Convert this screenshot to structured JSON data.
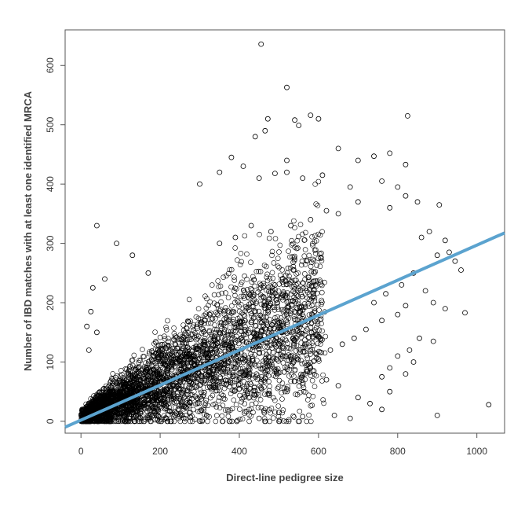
{
  "chart_data": {
    "type": "scatter",
    "title": "",
    "xlabel": "Direct-line pedigree size",
    "ylabel": "Number of IBD matches with at least one identified MRCA",
    "xlim": [
      -40,
      1070
    ],
    "ylim": [
      -20,
      660
    ],
    "x_ticks": [
      0,
      200,
      400,
      600,
      800,
      1000
    ],
    "y_ticks": [
      0,
      100,
      200,
      300,
      400,
      500,
      600
    ],
    "grid": false,
    "legend": "none",
    "point_style": "open circle",
    "point_color": "#000000",
    "fit_line": {
      "intercept": 2,
      "slope": 0.295,
      "color": "#5ba3cf"
    },
    "x_tick_labels": [
      "0",
      "200",
      "400",
      "600",
      "800",
      "1000"
    ],
    "y_tick_labels": [
      "0",
      "100",
      "200",
      "300",
      "400",
      "500",
      "600"
    ],
    "points": [
      [
        455,
        636
      ],
      [
        520,
        563
      ],
      [
        580,
        516
      ],
      [
        825,
        515
      ],
      [
        472,
        510
      ],
      [
        540,
        508
      ],
      [
        465,
        490
      ],
      [
        550,
        499
      ],
      [
        440,
        480
      ],
      [
        600,
        510
      ],
      [
        650,
        460
      ],
      [
        740,
        447
      ],
      [
        820,
        433
      ],
      [
        780,
        452
      ],
      [
        700,
        440
      ],
      [
        520,
        440
      ],
      [
        410,
        430
      ],
      [
        380,
        445
      ],
      [
        350,
        420
      ],
      [
        300,
        400
      ],
      [
        450,
        410
      ],
      [
        490,
        418
      ],
      [
        520,
        420
      ],
      [
        560,
        410
      ],
      [
        610,
        415
      ],
      [
        680,
        395
      ],
      [
        760,
        405
      ],
      [
        800,
        395
      ],
      [
        820,
        380
      ],
      [
        850,
        370
      ],
      [
        905,
        365
      ],
      [
        780,
        360
      ],
      [
        700,
        370
      ],
      [
        650,
        350
      ],
      [
        620,
        355
      ],
      [
        580,
        340
      ],
      [
        530,
        330
      ],
      [
        480,
        320
      ],
      [
        430,
        330
      ],
      [
        390,
        310
      ],
      [
        350,
        300
      ],
      [
        40,
        330
      ],
      [
        90,
        300
      ],
      [
        130,
        280
      ],
      [
        170,
        250
      ],
      [
        880,
        320
      ],
      [
        860,
        310
      ],
      [
        920,
        305
      ],
      [
        930,
        285
      ],
      [
        945,
        270
      ],
      [
        960,
        255
      ],
      [
        900,
        280
      ],
      [
        840,
        250
      ],
      [
        810,
        230
      ],
      [
        770,
        215
      ],
      [
        740,
        200
      ],
      [
        870,
        220
      ],
      [
        890,
        200
      ],
      [
        920,
        190
      ],
      [
        970,
        183
      ],
      [
        820,
        195
      ],
      [
        800,
        180
      ],
      [
        760,
        170
      ],
      [
        720,
        155
      ],
      [
        690,
        140
      ],
      [
        660,
        130
      ],
      [
        630,
        120
      ],
      [
        600,
        105
      ],
      [
        580,
        90
      ],
      [
        620,
        70
      ],
      [
        650,
        60
      ],
      [
        700,
        40
      ],
      [
        730,
        30
      ],
      [
        760,
        75
      ],
      [
        780,
        90
      ],
      [
        800,
        110
      ],
      [
        830,
        120
      ],
      [
        855,
        140
      ],
      [
        890,
        135
      ],
      [
        780,
        50
      ],
      [
        900,
        10
      ],
      [
        1030,
        28
      ],
      [
        840,
        100
      ],
      [
        820,
        80
      ],
      [
        760,
        20
      ],
      [
        680,
        5
      ],
      [
        640,
        10
      ],
      [
        560,
        8
      ],
      [
        500,
        15
      ],
      [
        450,
        5
      ],
      [
        30,
        225
      ],
      [
        25,
        185
      ],
      [
        40,
        150
      ],
      [
        60,
        240
      ],
      [
        15,
        160
      ],
      [
        20,
        120
      ]
    ]
  }
}
